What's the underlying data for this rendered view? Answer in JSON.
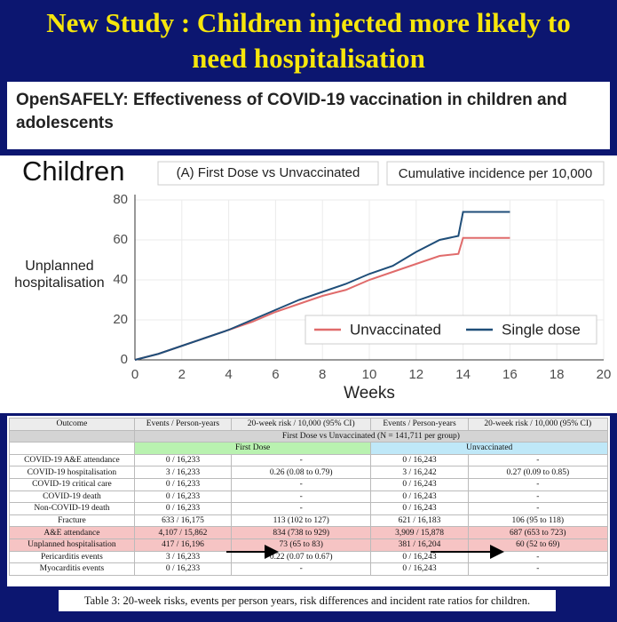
{
  "header": {
    "title": "New Study : Children injected more likely to need hospitalisation"
  },
  "paper": {
    "title": "OpenSAFELY: Effectiveness of COVID-19 vaccination in children and adolescents"
  },
  "chart_data": {
    "type": "line",
    "title": "Children",
    "subtitle": "(A) First Dose vs Unvaccinated",
    "annotation": "Cumulative incidence per 10,000",
    "ylabel": "Unplanned hospitalisation",
    "xlabel": "Weeks",
    "x": [
      0,
      1,
      2,
      3,
      4,
      5,
      6,
      7,
      8,
      9,
      10,
      11,
      12,
      13,
      13.8,
      14,
      16
    ],
    "series": [
      {
        "name": "Unvaccinated",
        "color": "#e06b6b",
        "values": [
          0,
          3,
          7,
          11,
          15,
          19,
          24,
          28,
          32,
          35,
          40,
          44,
          48,
          52,
          53,
          61,
          61
        ]
      },
      {
        "name": "Single dose",
        "color": "#1f4e79",
        "values": [
          0,
          3,
          7,
          11,
          15,
          20,
          25,
          30,
          34,
          38,
          43,
          47,
          54,
          60,
          62,
          74,
          74
        ]
      }
    ],
    "xlim": [
      0,
      20
    ],
    "xticks": [
      0,
      2,
      4,
      6,
      8,
      10,
      12,
      14,
      16,
      18,
      20
    ],
    "ylim": [
      0,
      80
    ],
    "yticks": [
      0,
      20,
      40,
      60,
      80
    ],
    "grid": true,
    "legend": "bottom-right"
  },
  "table": {
    "headers": [
      "Outcome",
      "Events / Person-years",
      "20-week risk / 10,000 (95% CI)",
      "Events / Person-years",
      "20-week risk / 10,000 (95% CI)"
    ],
    "group": "First Dose vs Unvaccinated (N = 141,711 per group)",
    "subgroups": [
      "First Dose",
      "Unvaccinated"
    ],
    "rows": [
      [
        "COVID-19 A&E attendance",
        "0 / 16,233",
        "-",
        "0 / 16,243",
        "-"
      ],
      [
        "COVID-19 hospitalisation",
        "3 / 16,233",
        "0.26 (0.08 to 0.79)",
        "3 / 16,242",
        "0.27 (0.09 to 0.85)"
      ],
      [
        "COVID-19 critical care",
        "0 / 16,233",
        "-",
        "0 / 16,243",
        "-"
      ],
      [
        "COVID-19 death",
        "0 / 16,233",
        "-",
        "0 / 16,243",
        "-"
      ],
      [
        "Non-COVID-19 death",
        "0 / 16,233",
        "-",
        "0 / 16,243",
        "-"
      ],
      [
        "Fracture",
        "633 / 16,175",
        "113 (102 to 127)",
        "621 / 16,183",
        "106 (95 to 118)"
      ],
      [
        "A&E attendance",
        "4,107 / 15,862",
        "834 (738 to 929)",
        "3,909 / 15,878",
        "687 (653 to 723)"
      ],
      [
        "Unplanned hospitalisation",
        "417 / 16,196",
        "73 (65 to 83)",
        "381 / 16,204",
        "60 (52 to 69)"
      ],
      [
        "Pericarditis events",
        "3 / 16,233",
        "0.22 (0.07 to 0.67)",
        "0 / 16,243",
        "-"
      ],
      [
        "Myocarditis events",
        "0 / 16,233",
        "-",
        "0 / 16,243",
        "-"
      ]
    ]
  },
  "caption": "Table 3: 20-week risks, events per person years, risk differences and incident rate ratios for children."
}
